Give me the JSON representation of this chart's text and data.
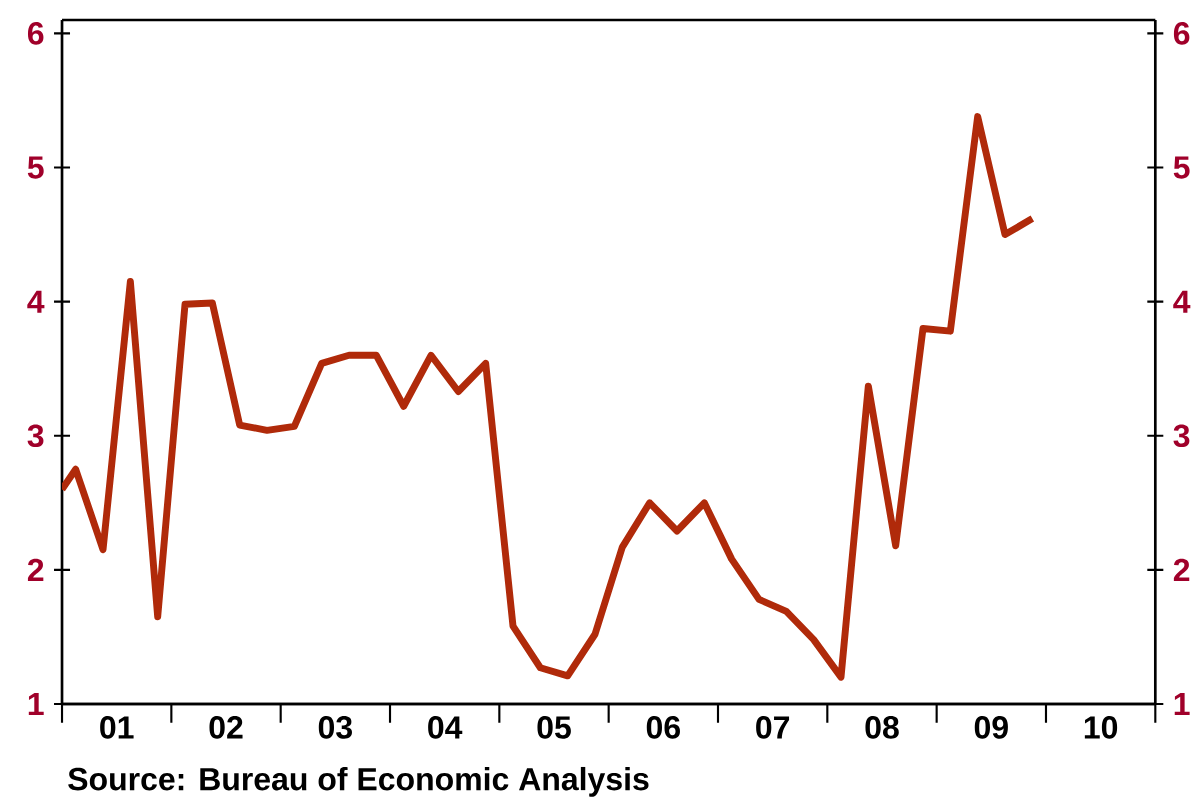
{
  "chart_data": {
    "type": "line",
    "color": "#b02a0a",
    "x": [
      0.5,
      0.625,
      0.875,
      1.125,
      1.375,
      1.625,
      1.875,
      2.125,
      2.375,
      2.625,
      2.875,
      3.125,
      3.375,
      3.625,
      3.875,
      4.125,
      4.375,
      4.625,
      4.875,
      5.125,
      5.375,
      5.625,
      5.875,
      6.125,
      6.375,
      6.625,
      6.875,
      7.125,
      7.375,
      7.625,
      7.875,
      8.125,
      8.375,
      8.625,
      8.875,
      9.125,
      9.375
    ],
    "values": [
      2.6,
      2.75,
      2.15,
      4.15,
      1.65,
      3.98,
      3.99,
      3.08,
      3.04,
      3.07,
      3.54,
      3.6,
      3.6,
      3.22,
      3.6,
      3.33,
      3.54,
      1.58,
      1.27,
      1.21,
      1.52,
      2.17,
      2.5,
      2.29,
      2.5,
      2.08,
      1.78,
      1.69,
      1.48,
      1.2,
      3.37,
      2.18,
      3.8,
      3.78,
      5.38,
      4.5,
      4.62
    ],
    "xlim": [
      0.5,
      10.5
    ],
    "xticks": [
      {
        "value": 0.5,
        "label": null
      },
      {
        "value": 1,
        "label": "01"
      },
      {
        "value": 1.5,
        "label": null
      },
      {
        "value": 2,
        "label": "02"
      },
      {
        "value": 2.5,
        "label": null
      },
      {
        "value": 3,
        "label": "03"
      },
      {
        "value": 3.5,
        "label": null
      },
      {
        "value": 4,
        "label": "04"
      },
      {
        "value": 4.5,
        "label": null
      },
      {
        "value": 5,
        "label": "05"
      },
      {
        "value": 5.5,
        "label": null
      },
      {
        "value": 6,
        "label": "06"
      },
      {
        "value": 6.5,
        "label": null
      },
      {
        "value": 7,
        "label": "07"
      },
      {
        "value": 7.5,
        "label": null
      },
      {
        "value": 8,
        "label": "08"
      },
      {
        "value": 8.5,
        "label": null
      },
      {
        "value": 9,
        "label": "09"
      },
      {
        "value": 9.5,
        "label": null
      },
      {
        "value": 10,
        "label": "10"
      },
      {
        "value": 10.5,
        "label": null
      }
    ],
    "ylim": [
      1,
      6.1
    ],
    "yticks": [
      1,
      2,
      3,
      4,
      5,
      6
    ],
    "y2lim": [
      1,
      6.1
    ],
    "y2ticks": [
      1,
      2,
      3,
      4,
      5,
      6
    ],
    "marker": "none",
    "line_style": "solid",
    "annotations": [
      "Source:  Bureau of Economic Analysis"
    ]
  }
}
